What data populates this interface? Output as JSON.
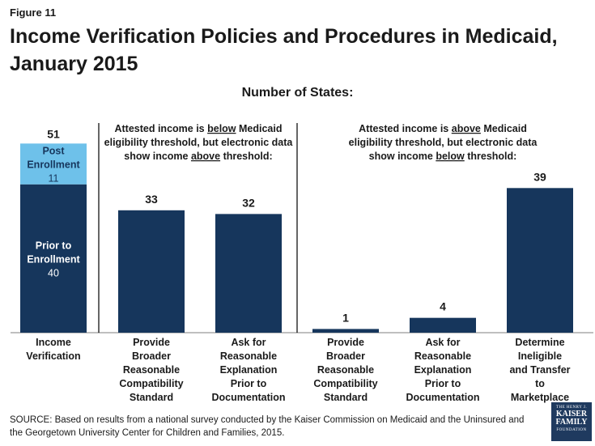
{
  "figure_label": "Figure 11",
  "title": "Income Verification Policies and Procedures in Medicaid, January 2015",
  "subtitle": "Number of States:",
  "source": "SOURCE: Based on results from a national survey conducted by the Kaiser Commission on Medicaid and the Uninsured and the Georgetown University Center for Children and Families, 2015.",
  "logo": {
    "line1": "THE HENRY J.",
    "line2": "KAISER",
    "line3": "FAMILY",
    "line4": "FOUNDATION"
  },
  "colors": {
    "dark": "#16365c",
    "light": "#6ec1ea",
    "axis": "#7f7f7f",
    "text": "#1a1a1a"
  },
  "chart_data": {
    "type": "bar",
    "ylim": [
      0,
      55
    ],
    "stacked_bar": {
      "category": "Income Verification",
      "total": 51,
      "segments": [
        {
          "label": "Prior to Enrollment",
          "value": 40,
          "color": "#16365c"
        },
        {
          "label": "Post Enrollment",
          "value": 11,
          "color": "#6ec1ea"
        }
      ]
    },
    "groups": [
      {
        "header": {
          "pre": "Attested income is ",
          "key": "below",
          "mid": " Medicaid eligibility threshold, but electronic data show income ",
          "key2": "above",
          "post": " threshold:"
        },
        "header_lines": [
          [
            {
              "t": "Attested income is "
            },
            {
              "t": "below",
              "u": true
            },
            {
              "t": " Medicaid"
            }
          ],
          [
            {
              "t": "eligibility threshold, but electronic data"
            }
          ],
          [
            {
              "t": "show income "
            },
            {
              "t": "above",
              "u": true
            },
            {
              "t": " threshold:"
            }
          ]
        ],
        "bars": [
          {
            "category": "Provide Broader Reasonable Compatibility Standard",
            "value": 33
          },
          {
            "category": "Ask for Reasonable Explanation Prior to Documentation",
            "value": 32
          }
        ]
      },
      {
        "header_lines": [
          [
            {
              "t": "Attested income is "
            },
            {
              "t": "above",
              "u": true
            },
            {
              "t": " Medicaid"
            }
          ],
          [
            {
              "t": "eligibility threshold, but electronic data"
            }
          ],
          [
            {
              "t": "show income "
            },
            {
              "t": "below",
              "u": true
            },
            {
              "t": " threshold:"
            }
          ]
        ],
        "bars": [
          {
            "category": "Provide Broader Reasonable Compatibility Standard",
            "value": 1
          },
          {
            "category": "Ask for Reasonable Explanation Prior to Documentation",
            "value": 4
          },
          {
            "category": "Determine Ineligible and Transfer to Marketplace",
            "value": 39
          }
        ]
      }
    ]
  }
}
